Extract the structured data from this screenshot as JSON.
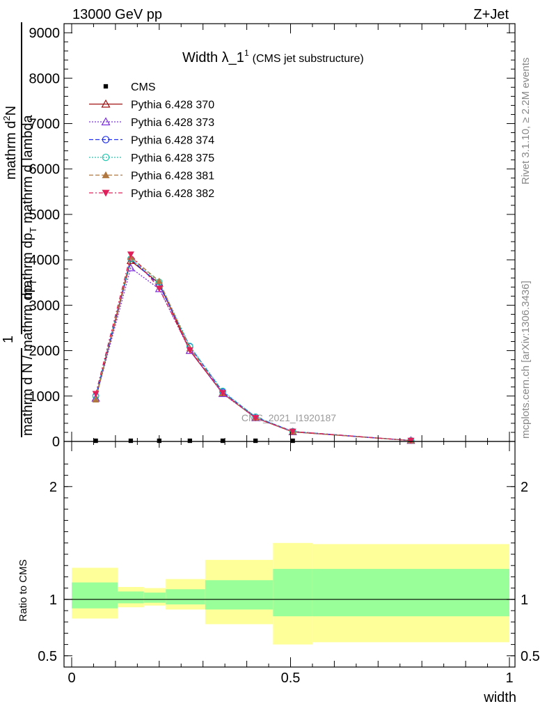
{
  "header": {
    "left": "13000 GeV pp",
    "right": "Z+Jet"
  },
  "title": {
    "main": "Width λ_1",
    "sup": "1",
    "sub": "(CMS jet substructure)"
  },
  "side_labels": {
    "rivet": "Rivet 3.1.10, ≥ 2.2M events",
    "mcplots": "mcplots.cern.ch [arXiv:1306.3436]"
  },
  "watermark": "CMS_2021_I1920187",
  "y_label": {
    "line1": "mathrm d",
    "line1_sup": "2",
    "line1_rest": "N",
    "line2": "mathrm dp",
    "line2_sub": "T",
    "line2_rest": " mathrm d lambda",
    "one": "1",
    "denom": "mathrm d N / mathrm dp",
    "denom_sub": "T"
  },
  "ratio_ylabel": "Ratio to CMS",
  "x_label": "width",
  "colors": {
    "band_stat": "#99ff99",
    "band_total": "#ffff99",
    "axis": "#000000",
    "watermark": "#999999",
    "side_text": "#888888"
  },
  "chart_data": {
    "type": "line",
    "x": [
      0.055,
      0.135,
      0.2,
      0.27,
      0.345,
      0.42,
      0.505,
      0.775
    ],
    "xlim": [
      -0.01,
      1.0
    ],
    "ylim": [
      0,
      9200
    ],
    "y_ticks": [
      0,
      1000,
      2000,
      3000,
      4000,
      5000,
      6000,
      7000,
      8000,
      9000
    ],
    "x_ticks": [
      0,
      0.5,
      1
    ],
    "x_tick_labels": [
      "0",
      "0.5",
      "1"
    ],
    "series": [
      {
        "name": "CMS",
        "color": "#000000",
        "marker": "square",
        "dash": "none",
        "values": [
          0,
          0,
          0,
          0,
          0,
          0,
          0,
          0
        ]
      },
      {
        "name": "Pythia 6.428 370",
        "color": "#a01010",
        "marker": "triangle-open",
        "dash": "solid",
        "values": [
          950,
          3980,
          3480,
          2000,
          1060,
          520,
          210,
          20
        ]
      },
      {
        "name": "Pythia 6.428 373",
        "color": "#7b2fdb",
        "marker": "triangle-open",
        "dash": "dotted",
        "values": [
          950,
          3820,
          3360,
          2000,
          1050,
          520,
          210,
          20
        ]
      },
      {
        "name": "Pythia 6.428 374",
        "color": "#2030ee",
        "marker": "circle-open",
        "dash": "dashed",
        "values": [
          1000,
          4020,
          3440,
          2090,
          1090,
          540,
          220,
          20
        ]
      },
      {
        "name": "Pythia 6.428 375",
        "color": "#20c8b0",
        "marker": "circle-open",
        "dash": "dotted",
        "values": [
          1010,
          4020,
          3510,
          2100,
          1110,
          540,
          220,
          20
        ]
      },
      {
        "name": "Pythia 6.428 381",
        "color": "#b07840",
        "marker": "triangle",
        "dash": "dashed",
        "values": [
          920,
          4060,
          3530,
          2050,
          1060,
          520,
          210,
          20
        ]
      },
      {
        "name": "Pythia 6.428 382",
        "color": "#e0205a",
        "marker": "triangle-down",
        "dash": "dashdot",
        "values": [
          1050,
          4120,
          3370,
          2010,
          1070,
          520,
          220,
          20
        ]
      }
    ],
    "ratio": {
      "ylim": [
        0.4,
        2.4
      ],
      "y_ticks": [
        0.5,
        1,
        2
      ],
      "y_tick_labels": [
        "0.5",
        "1",
        "2"
      ],
      "bin_edges": [
        0.0,
        0.105,
        0.165,
        0.215,
        0.305,
        0.46,
        0.55,
        1.0
      ],
      "stat_band": [
        [
          0.92,
          1.15
        ],
        [
          0.965,
          1.07
        ],
        [
          0.97,
          1.06
        ],
        [
          0.955,
          1.09
        ],
        [
          0.91,
          1.17
        ],
        [
          0.85,
          1.27
        ],
        [
          0.85,
          1.27
        ]
      ],
      "total_band": [
        [
          0.83,
          1.28
        ],
        [
          0.93,
          1.11
        ],
        [
          0.945,
          1.1
        ],
        [
          0.91,
          1.18
        ],
        [
          0.78,
          1.35
        ],
        [
          0.6,
          1.5
        ],
        [
          0.62,
          1.49
        ]
      ]
    }
  }
}
